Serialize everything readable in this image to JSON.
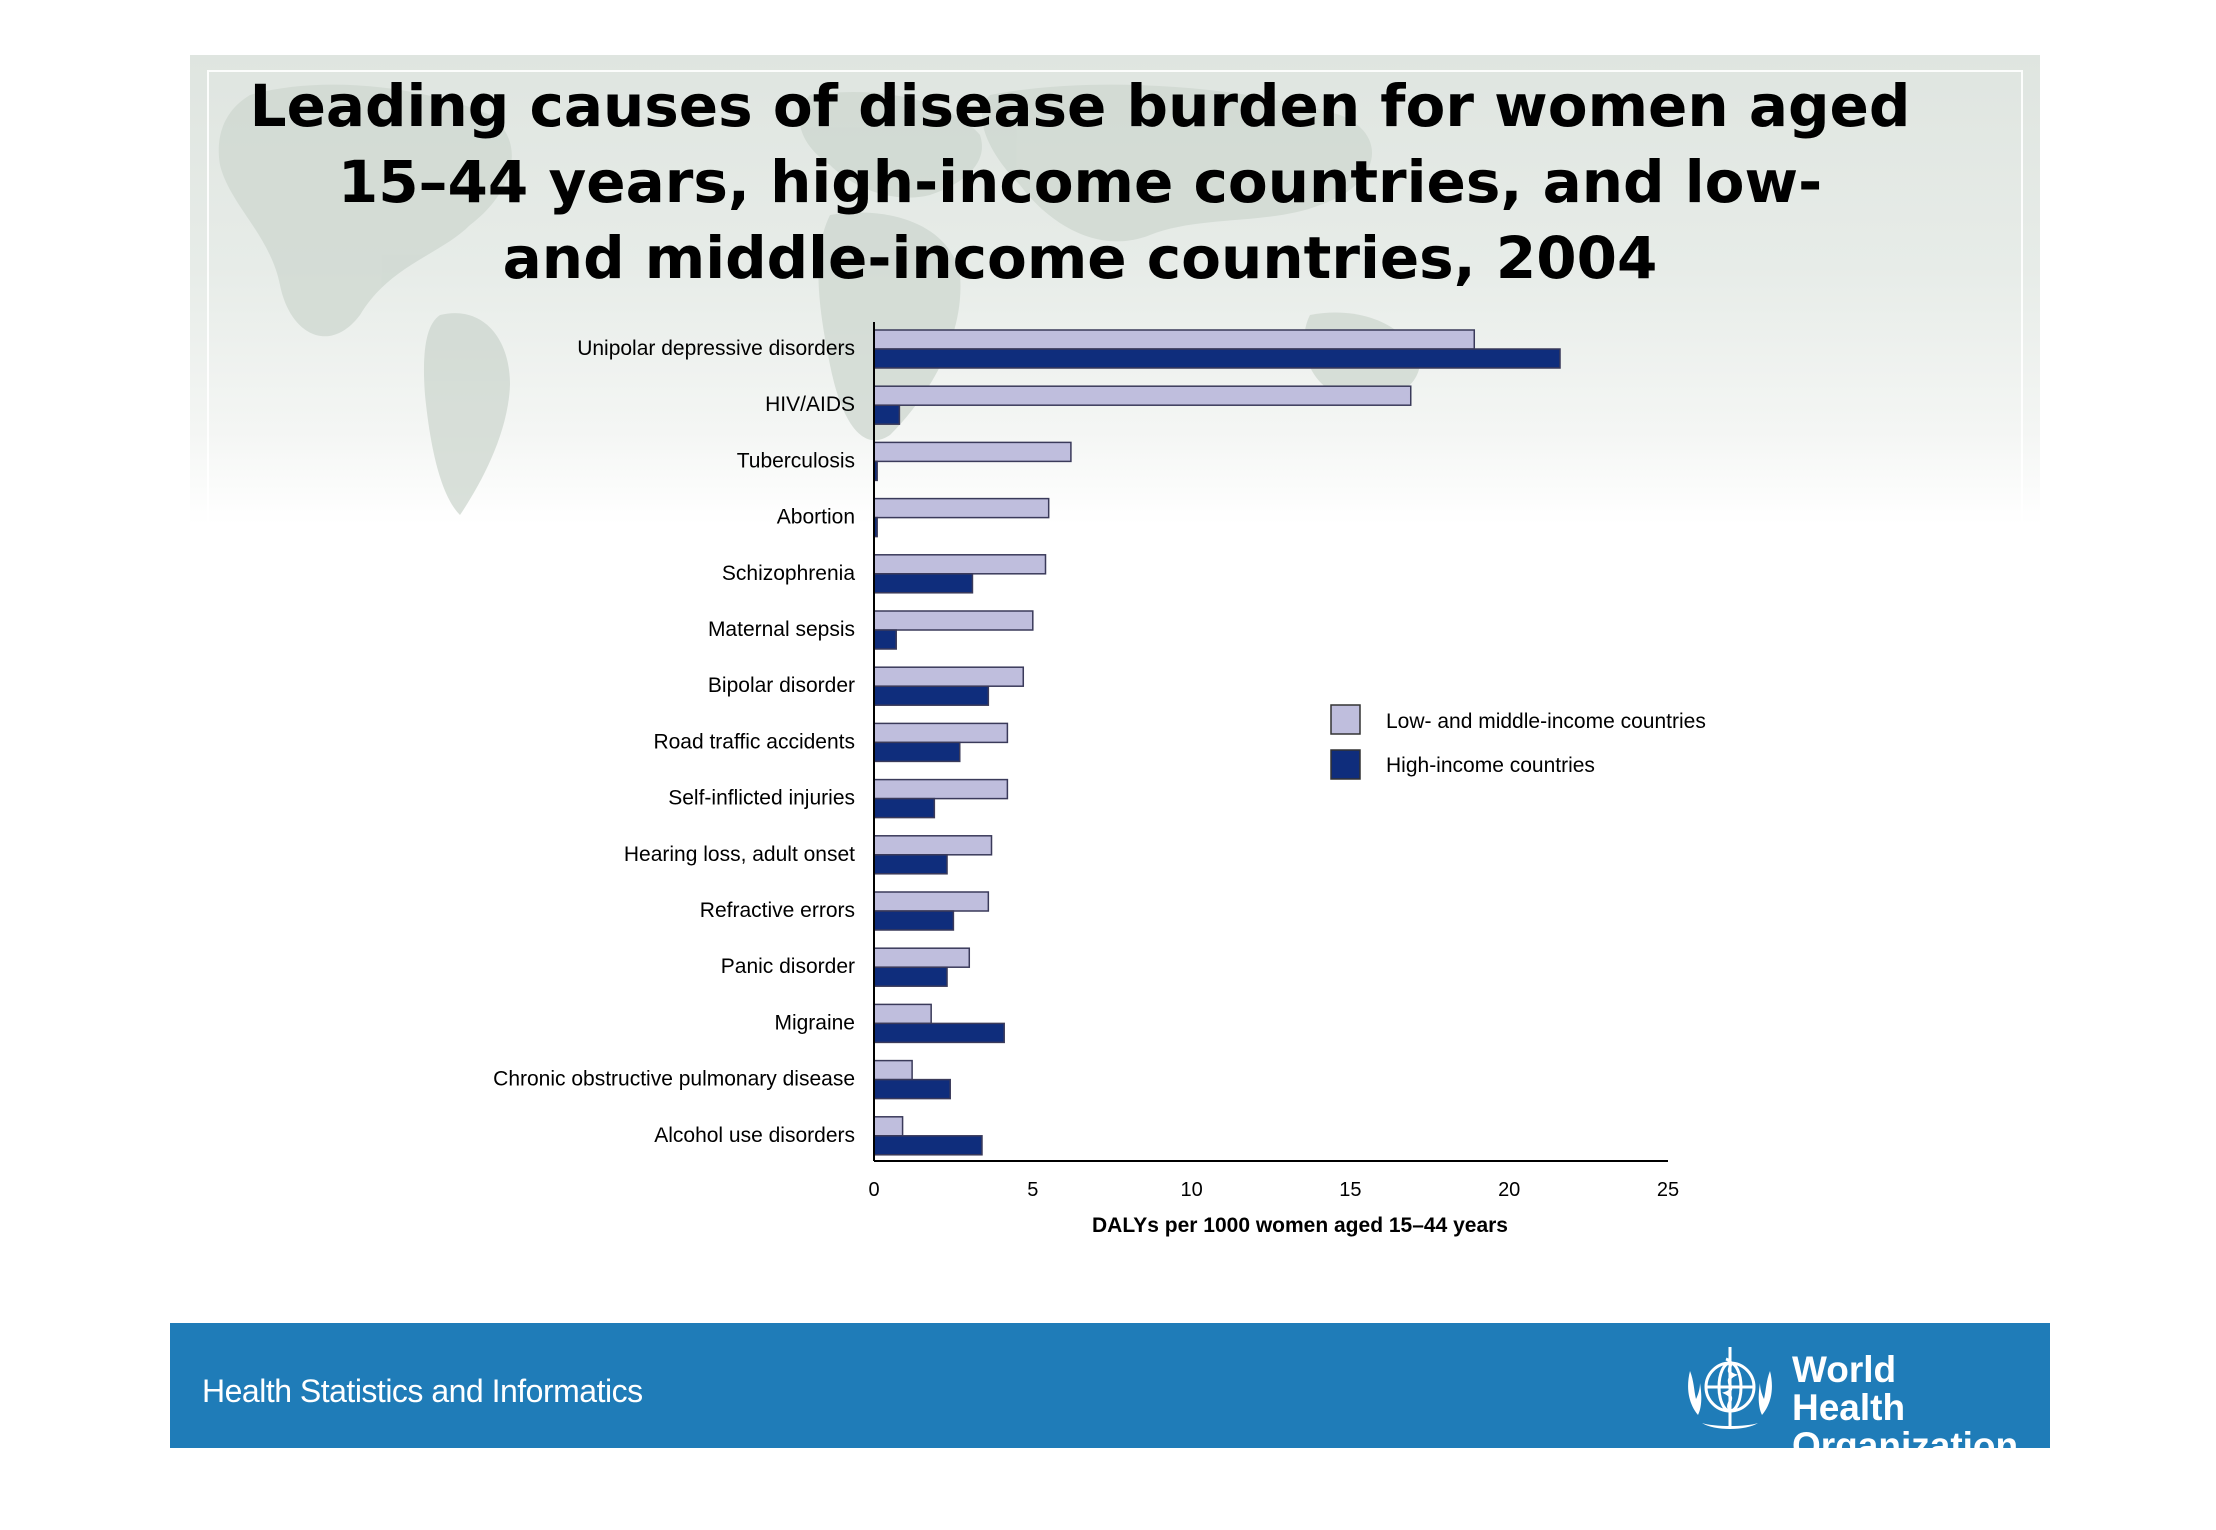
{
  "title": "Leading causes of disease burden for women aged 15–44 years, high-income countries, and low- and middle-income countries, 2004",
  "title_lines": [
    "Leading causes of disease burden for women aged",
    "15–44 years, high-income countries, and low-",
    "and middle-income countries, 2004"
  ],
  "chart_data": {
    "type": "bar",
    "orientation": "horizontal",
    "categories": [
      "Unipolar depressive disorders",
      "HIV/AIDS",
      "Tuberculosis",
      "Abortion",
      "Schizophrenia",
      "Maternal sepsis",
      "Bipolar disorder",
      "Road traffic accidents",
      "Self-inflicted injuries",
      "Hearing loss, adult onset",
      "Refractive errors",
      "Panic disorder",
      "Migraine",
      "Chronic obstructive pulmonary disease",
      "Alcohol use disorders"
    ],
    "series": [
      {
        "name": "Low- and middle-income countries",
        "color": "#bfbedd",
        "values": [
          18.9,
          16.9,
          6.2,
          5.5,
          5.4,
          5.0,
          4.7,
          4.2,
          4.2,
          3.7,
          3.6,
          3.0,
          1.8,
          1.2,
          0.9
        ]
      },
      {
        "name": "High-income countries",
        "color": "#0f2d7c",
        "values": [
          21.6,
          0.8,
          0.1,
          0.1,
          3.1,
          0.7,
          3.6,
          2.7,
          1.9,
          2.3,
          2.5,
          2.3,
          4.1,
          2.4,
          3.4
        ]
      }
    ],
    "xlabel": "DALYs per 1000 women aged 15–44 years",
    "xticks": [
      "0",
      "5",
      "10",
      "15",
      "20",
      "25"
    ],
    "xlim": [
      0,
      25
    ],
    "legend": "right-middle",
    "grid": false
  },
  "footer": {
    "label": "Health Statistics and Informatics",
    "org_line1": "World Health",
    "org_line2": "Organization",
    "color": "#1f7cb8"
  }
}
